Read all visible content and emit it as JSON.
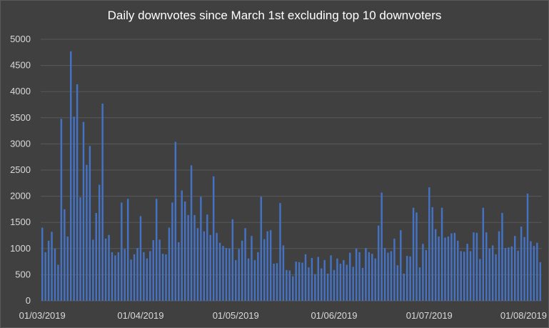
{
  "chart_data": {
    "type": "bar",
    "title": "Daily downvotes since March 1st excluding top 10 downvoters",
    "xlabel": "",
    "ylabel": "",
    "ylim": [
      0,
      5000
    ],
    "yticks": [
      0,
      500,
      1000,
      1500,
      2000,
      2500,
      3000,
      3500,
      4000,
      4500,
      5000
    ],
    "x_tick_labels": [
      "01/03/2019",
      "01/04/2019",
      "01/05/2019",
      "01/06/2019",
      "01/07/2019",
      "01/08/2019"
    ],
    "start_date": "2019-03-01",
    "grid": true,
    "colors": {
      "bar": "#4472c4",
      "background": "#404040",
      "grid": "#595959",
      "text": "#d9d9d9"
    },
    "values": [
      1400,
      930,
      1150,
      1320,
      1000,
      690,
      3480,
      1750,
      1230,
      4770,
      3520,
      4140,
      1980,
      3420,
      2600,
      2960,
      1170,
      1680,
      2220,
      3770,
      1190,
      1260,
      930,
      870,
      930,
      1880,
      990,
      1950,
      790,
      890,
      1010,
      1620,
      930,
      810,
      950,
      1160,
      1950,
      1170,
      900,
      890,
      1400,
      1880,
      3040,
      1120,
      2110,
      1900,
      1640,
      2590,
      1640,
      1390,
      1990,
      1330,
      1650,
      1260,
      2380,
      1300,
      1110,
      1050,
      1010,
      1000,
      1560,
      780,
      990,
      1150,
      1390,
      810,
      1240,
      780,
      930,
      1990,
      1180,
      1330,
      1350,
      710,
      720,
      1870,
      1060,
      590,
      580,
      470,
      750,
      740,
      730,
      890,
      640,
      820,
      510,
      840,
      620,
      780,
      520,
      870,
      590,
      810,
      710,
      780,
      690,
      920,
      650,
      1000,
      930,
      630,
      1010,
      930,
      900,
      810,
      1440,
      2070,
      1010,
      920,
      950,
      1190,
      680,
      1350,
      520,
      860,
      850,
      1780,
      1690,
      640,
      1090,
      970,
      2170,
      1790,
      1370,
      1230,
      1780,
      1210,
      1230,
      1290,
      1300,
      1150,
      950,
      940,
      1090,
      950,
      1310,
      1300,
      800,
      1780,
      1310,
      1000,
      1060,
      890,
      1330,
      1680,
      1010,
      1020,
      1040,
      1240,
      960,
      1420,
      1220,
      2050,
      1140,
      1050,
      1110,
      740
    ]
  }
}
